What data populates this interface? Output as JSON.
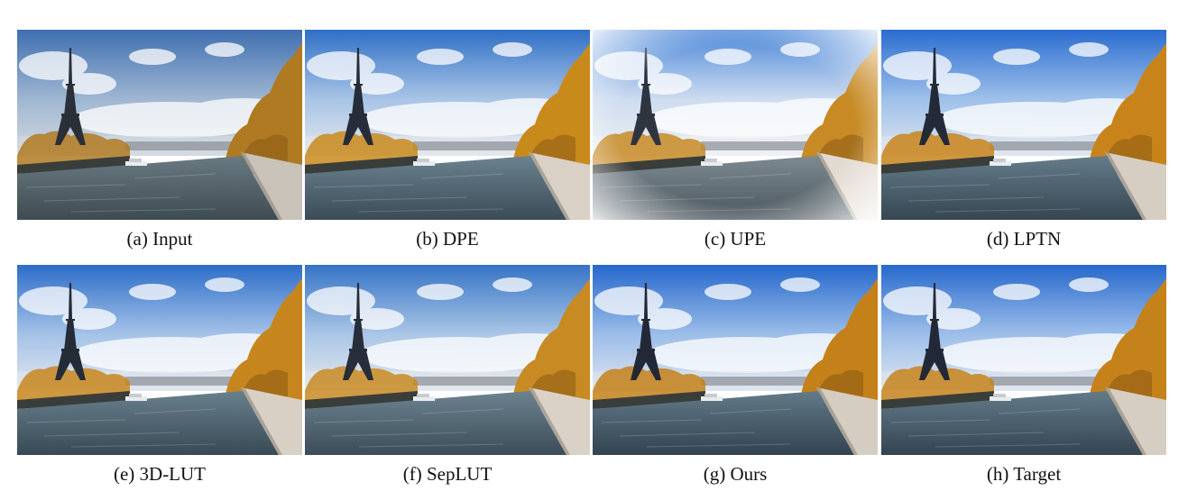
{
  "figure": {
    "panels": [
      {
        "id": "a",
        "caption": "(a) Input",
        "tone": "input"
      },
      {
        "id": "b",
        "caption": "(b) DPE",
        "tone": "dpe"
      },
      {
        "id": "c",
        "caption": "(c) UPE",
        "tone": "upe"
      },
      {
        "id": "d",
        "caption": "(d) LPTN",
        "tone": "lptn"
      },
      {
        "id": "e",
        "caption": "(e) 3D-LUT",
        "tone": "lut"
      },
      {
        "id": "f",
        "caption": "(f) SepLUT",
        "tone": "seplut"
      },
      {
        "id": "g",
        "caption": "(g) Ours",
        "tone": "ours"
      },
      {
        "id": "h",
        "caption": "(h) Target",
        "tone": "target"
      }
    ]
  },
  "tones": {
    "input": {
      "sky_top": "#3f6fb0",
      "sky_mid": "#9fb6d2",
      "horizon": "#d4dae0",
      "water_top": "#6a7a82",
      "water_bottom": "#3e4c52",
      "foliage": "#b07a22",
      "tower": "#2a2f38",
      "wall": "#c9c2b8",
      "vignette": false
    },
    "dpe": {
      "sky_top": "#2f6fc6",
      "sky_mid": "#a8c4e6",
      "horizon": "#e3e7ec",
      "water_top": "#6b8290",
      "water_bottom": "#3b4c57",
      "foliage": "#c98a1c",
      "tower": "#262c38",
      "wall": "#d9d1c5",
      "vignette": false
    },
    "upe": {
      "sky_top": "#4a86d8",
      "sky_mid": "#cddcf0",
      "horizon": "#eef0f3",
      "water_top": "#7d8a92",
      "water_bottom": "#4a565d",
      "foliage": "#c78a24",
      "tower": "#2e3440",
      "wall": "#e2dad0",
      "vignette": true
    },
    "lptn": {
      "sky_top": "#2a6cd0",
      "sky_mid": "#9ec0ea",
      "horizon": "#e0e6ee",
      "water_top": "#647c8a",
      "water_bottom": "#364652",
      "foliage": "#c8841a",
      "tower": "#232936",
      "wall": "#d6cec2",
      "vignette": false
    },
    "lut": {
      "sky_top": "#2d6dc8",
      "sky_mid": "#a4c2e8",
      "horizon": "#e2e7ee",
      "water_top": "#68808d",
      "water_bottom": "#394a55",
      "foliage": "#c7861d",
      "tower": "#252b37",
      "wall": "#d8d0c4",
      "vignette": false
    },
    "seplut": {
      "sky_top": "#3573c6",
      "sky_mid": "#aac6e6",
      "horizon": "#e4e8ed",
      "water_top": "#6c8390",
      "water_bottom": "#3c4d58",
      "foliage": "#c88a22",
      "tower": "#272d39",
      "wall": "#dad2c6",
      "vignette": false
    },
    "ours": {
      "sky_top": "#2567cc",
      "sky_mid": "#9bbde9",
      "horizon": "#dfe5ee",
      "water_top": "#627a88",
      "water_bottom": "#334350",
      "foliage": "#c48019",
      "tower": "#222835",
      "wall": "#d5cdc1",
      "vignette": false
    },
    "target": {
      "sky_top": "#2668cc",
      "sky_mid": "#9dbeea",
      "horizon": "#e0e6ee",
      "water_top": "#637b89",
      "water_bottom": "#344451",
      "foliage": "#c6821a",
      "tower": "#222835",
      "wall": "#d6cec2",
      "vignette": false
    }
  }
}
